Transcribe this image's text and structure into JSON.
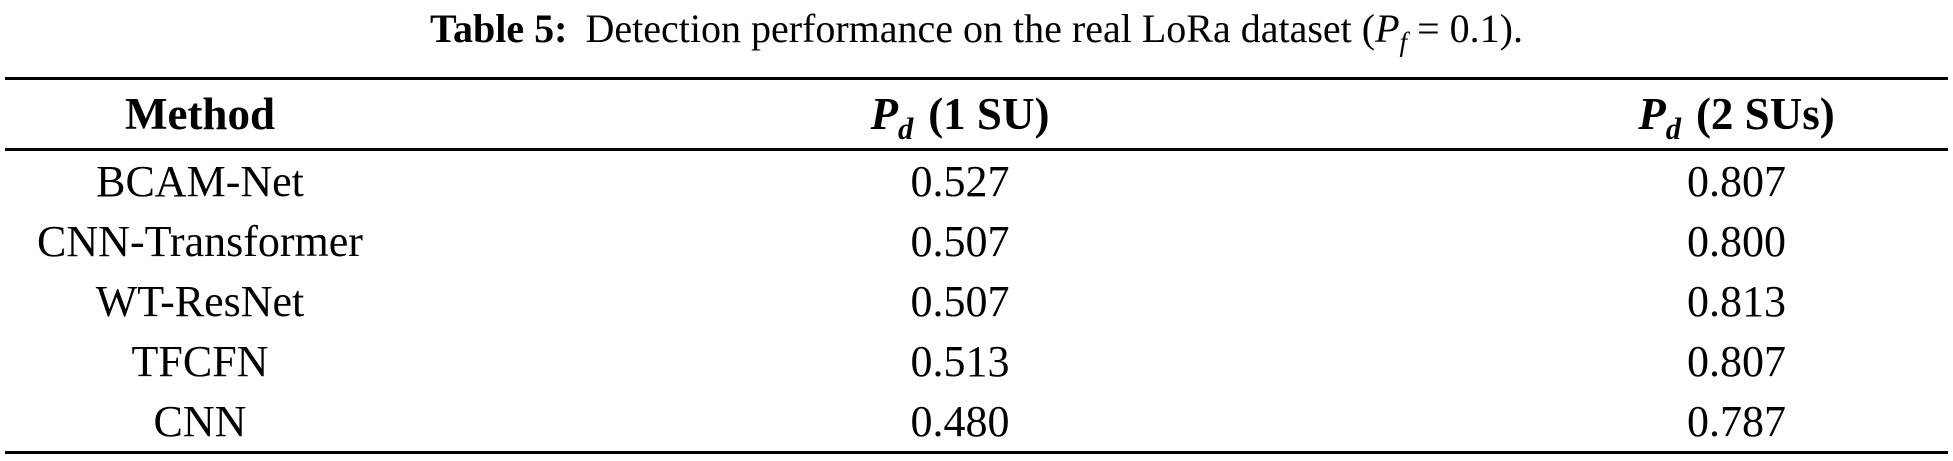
{
  "caption": {
    "label": "Table 5:",
    "body": "Detection performance on the real LoRa dataset (",
    "symbol": "P",
    "symbol_sub": "f",
    "tail": " = 0.1)."
  },
  "table": {
    "header": {
      "method": "Method",
      "col1": {
        "symbol": "P",
        "sub": "d",
        "suffix": "(1 SU)"
      },
      "col2": {
        "symbol": "P",
        "sub": "d",
        "suffix": "(2 SUs)"
      }
    },
    "rows": [
      {
        "method": "BCAM-Net",
        "pd_1su": "0.527",
        "pd_2sus": "0.807"
      },
      {
        "method": "CNN-Transformer",
        "pd_1su": "0.507",
        "pd_2sus": "0.800"
      },
      {
        "method": "WT-ResNet",
        "pd_1su": "0.507",
        "pd_2sus": "0.813"
      },
      {
        "method": "TFCFN",
        "pd_1su": "0.513",
        "pd_2sus": "0.807"
      },
      {
        "method": "CNN",
        "pd_1su": "0.480",
        "pd_2sus": "0.787"
      }
    ]
  },
  "chart_data": {
    "type": "table",
    "title": "Table 5: Detection performance on the real LoRa dataset (Pf = 0.1).",
    "columns": [
      "Method",
      "Pd (1 SU)",
      "Pd (2 SUs)"
    ],
    "rows": [
      [
        "BCAM-Net",
        0.527,
        0.807
      ],
      [
        "CNN-Transformer",
        0.507,
        0.8
      ],
      [
        "WT-ResNet",
        0.507,
        0.813
      ],
      [
        "TFCFN",
        0.513,
        0.807
      ],
      [
        "CNN",
        0.48,
        0.787
      ]
    ]
  },
  "colors": {
    "text": "#000000",
    "background": "#ffffff",
    "rule": "#000000"
  }
}
